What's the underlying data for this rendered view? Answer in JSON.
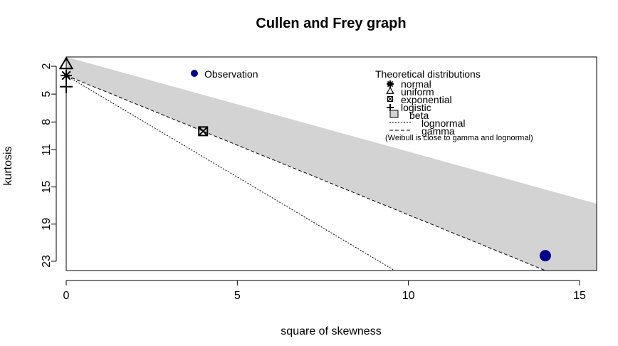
{
  "chart_data": {
    "type": "scatter",
    "title": "Cullen and Frey graph",
    "xlabel": "square of skewness",
    "ylabel": "kurtosis",
    "xlim": [
      0,
      15.5
    ],
    "ylim": [
      24,
      1
    ],
    "y_reversed": true,
    "x_ticks": [
      0,
      5,
      10,
      15
    ],
    "y_ticks": [
      2,
      5,
      8,
      11,
      15,
      19,
      23
    ],
    "observation": {
      "label": "Observation",
      "x": 14.0,
      "y": 22.4,
      "color": "#00008B"
    },
    "theoretical_distributions": {
      "title": "Theoretical distributions",
      "normal": {
        "label": "normal",
        "x": 0,
        "y": 3
      },
      "uniform": {
        "label": "uniform",
        "x": 0,
        "y": 1.8
      },
      "exponential": {
        "label": "exponential",
        "x": 4,
        "y": 9
      },
      "logistic": {
        "label": "logistic",
        "x": 0,
        "y": 4.2
      },
      "beta": {
        "label": "beta",
        "fill": "#d3d3d3"
      },
      "lognormal": {
        "label": "lognormal"
      },
      "gamma": {
        "label": "gamma"
      },
      "note": "(Weibull is close to gamma and lognormal)"
    },
    "beta_region": [
      [
        0,
        1
      ],
      [
        15.5,
        16.8
      ],
      [
        15.5,
        24
      ],
      [
        14.0,
        24
      ],
      [
        0,
        3
      ]
    ],
    "gamma_line": [
      [
        0,
        3
      ],
      [
        14.0,
        24
      ]
    ],
    "lognormal_line": [
      [
        0,
        3
      ],
      [
        9.6,
        24
      ]
    ],
    "legend_position": "top-right",
    "grid": false
  }
}
